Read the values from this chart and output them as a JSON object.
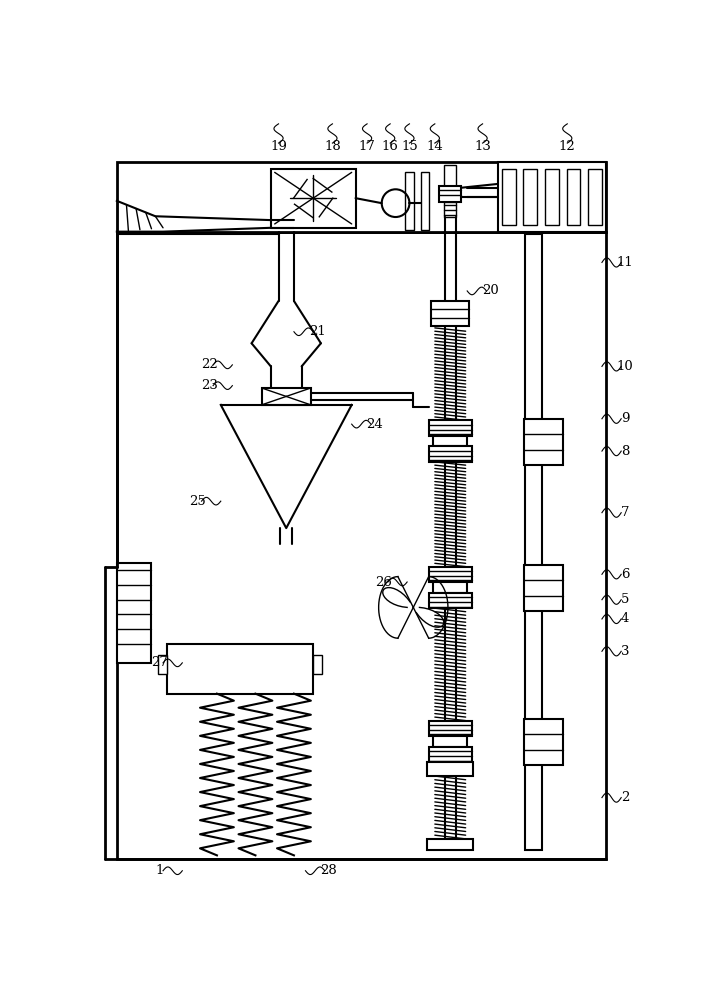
{
  "bg_color": "#ffffff",
  "fig_width": 7.05,
  "fig_height": 10.0,
  "dpi": 100
}
